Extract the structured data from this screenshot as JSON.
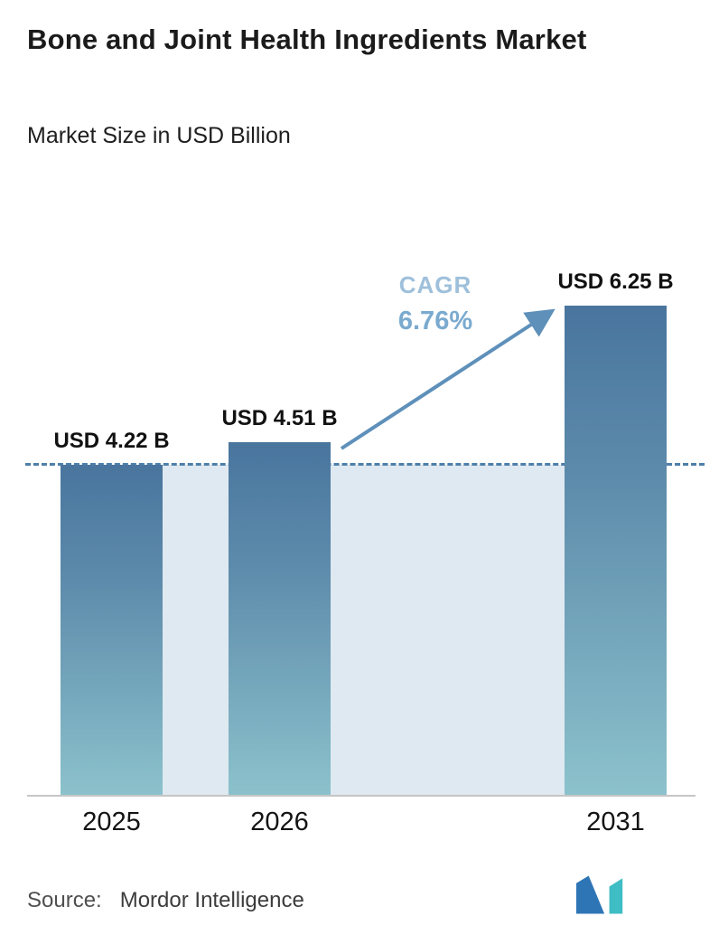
{
  "header": {
    "title": "Bone and Joint Health Ingredients Market",
    "subtitle": "Market Size in USD Billion"
  },
  "chart_data": {
    "type": "bar",
    "title": "Bone and Joint Health Ingredients Market",
    "subtitle": "Market Size in USD Billion",
    "categories": [
      "2025",
      "2026",
      "2031"
    ],
    "values": [
      4.22,
      4.51,
      6.25
    ],
    "bar_labels": [
      "USD 4.22 B",
      "USD 4.51 B",
      "USD 6.25 B"
    ],
    "unit": "USD Billion",
    "ylim": [
      0,
      6.8
    ],
    "grid": false,
    "reference_value": 4.22,
    "annotations": {
      "cagr_label": "CAGR",
      "cagr_value": "6.76%"
    },
    "colors": {
      "bar_top": "#49759e",
      "bar_bottom": "#8cc2cc",
      "shade": "#dfe9f1",
      "dashed_line": "#4d7fa9",
      "arrow": "#5e90ba",
      "cagr_text": "#7aaacf"
    }
  },
  "footer": {
    "source_label": "Source:",
    "source_value": "Mordor Intelligence"
  },
  "icons": {
    "logo": "mordor-intelligence-logo",
    "arrow": "growth-arrow-icon"
  }
}
